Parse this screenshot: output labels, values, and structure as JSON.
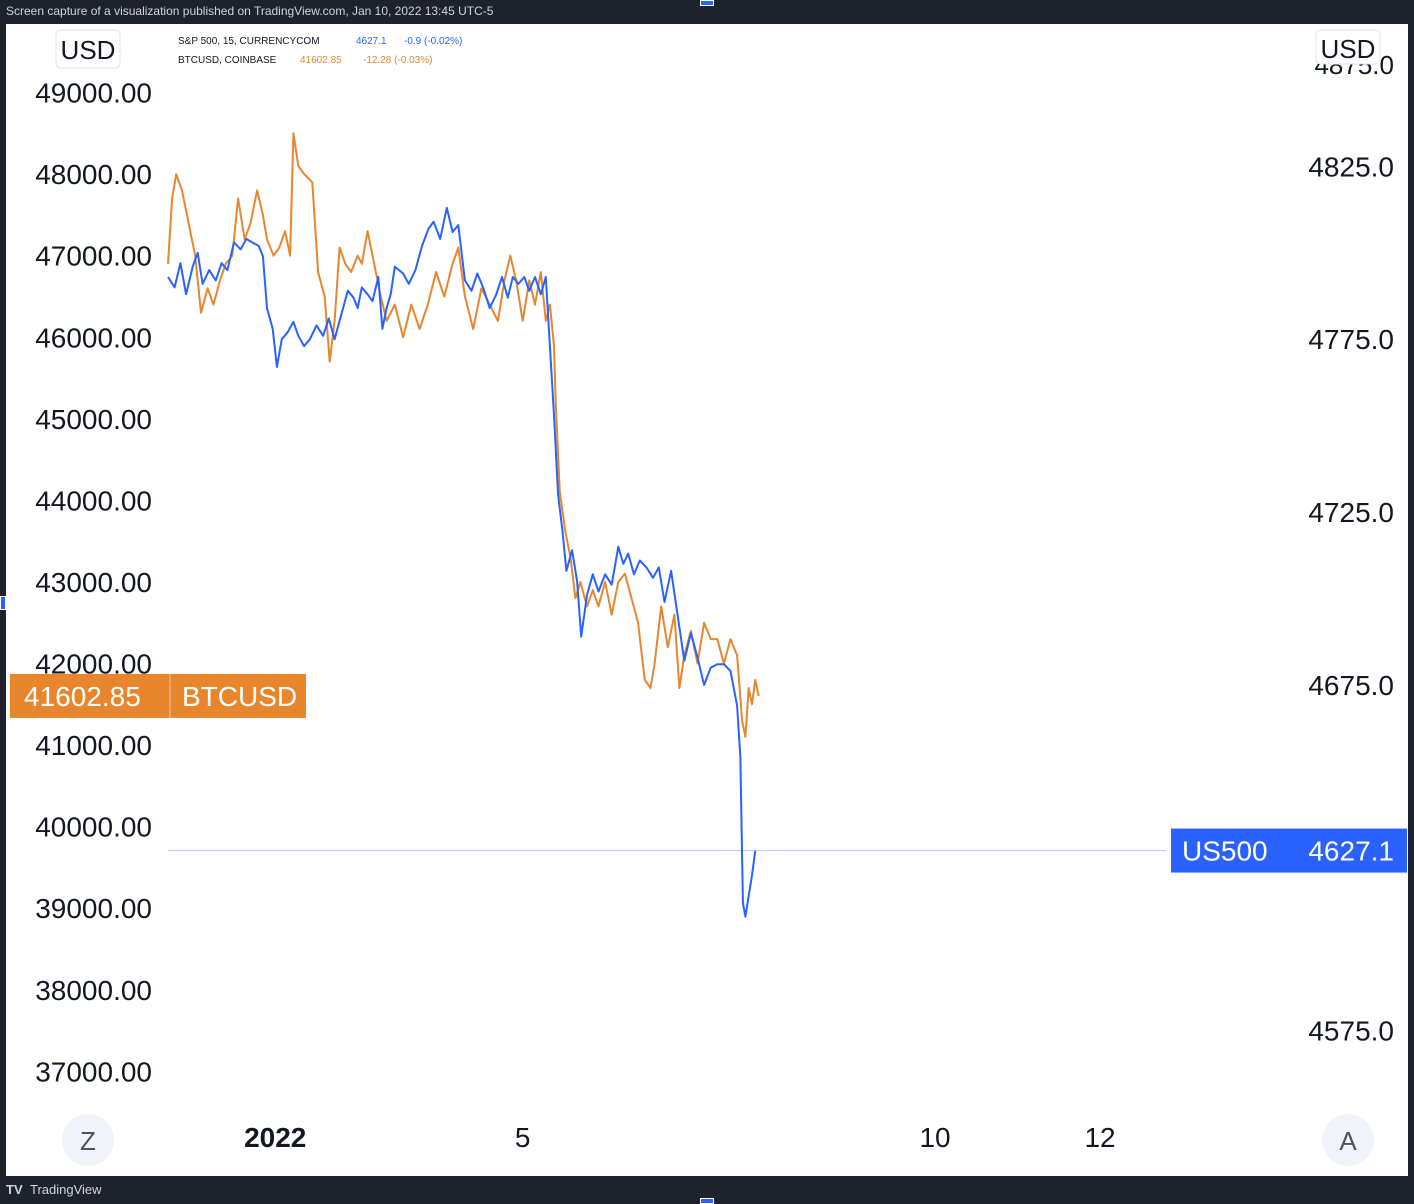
{
  "header": {
    "caption": "Screen capture of a visualization published on TradingView.com, Jan 10, 2022 13:45 UTC-5"
  },
  "footer": {
    "brand": "TradingView",
    "logo_glyph": "TV"
  },
  "legend": {
    "row1": {
      "name": "S&P 500, 15, CURRENCYCOM",
      "value": "4627.1",
      "change": "-0.9 (-0.02%)",
      "color": "#2962ff"
    },
    "row2": {
      "name": "BTCUSD, COINBASE",
      "value": "41602.85",
      "change": "-12.28 (-0.03%)",
      "color": "#e8862d"
    }
  },
  "left_axis": {
    "unit": "USD"
  },
  "right_axis": {
    "unit": "USD",
    "top_partial": "4875.0"
  },
  "price_labels": {
    "btc": {
      "value": "41602.85",
      "name": "BTCUSD",
      "color": "#e8862d"
    },
    "spx": {
      "value": "4627.1",
      "name": "US500",
      "color": "#2962ff"
    }
  },
  "buttons": {
    "zoom": "Z",
    "auto": "A"
  },
  "chart_data": {
    "type": "line",
    "x_ticks": [
      {
        "label": "2022",
        "t": 2.0
      },
      {
        "label": "5",
        "t": 5.0
      },
      {
        "label": "10",
        "t": 10.0
      },
      {
        "label": "12",
        "t": 12.0
      }
    ],
    "x_range_days": [
      0.7,
      12.8
    ],
    "left_axis": {
      "ticks": [
        "49000.00",
        "48000.00",
        "47000.00",
        "46000.00",
        "45000.00",
        "44000.00",
        "43000.00",
        "42000.00",
        "41000.00",
        "40000.00",
        "39000.00",
        "38000.00",
        "37000.00"
      ],
      "range": [
        36600,
        49350
      ]
    },
    "right_axis": {
      "ticks": [
        "4825.0",
        "4775.0",
        "4725.0",
        "4675.0",
        "4575.0"
      ],
      "range": [
        4553.8,
        4854.6
      ]
    },
    "grid": false,
    "series": [
      {
        "name": "BTCUSD",
        "axis": "left",
        "color": "#e8862d",
        "points": [
          [
            0.7,
            46900
          ],
          [
            0.75,
            47700
          ],
          [
            0.8,
            48000
          ],
          [
            0.87,
            47800
          ],
          [
            0.95,
            47400
          ],
          [
            1.03,
            47000
          ],
          [
            1.1,
            46300
          ],
          [
            1.18,
            46600
          ],
          [
            1.25,
            46400
          ],
          [
            1.33,
            46700
          ],
          [
            1.4,
            46900
          ],
          [
            1.48,
            47000
          ],
          [
            1.55,
            47700
          ],
          [
            1.63,
            47200
          ],
          [
            1.7,
            47400
          ],
          [
            1.78,
            47800
          ],
          [
            1.85,
            47500
          ],
          [
            1.9,
            47200
          ],
          [
            1.98,
            47000
          ],
          [
            2.05,
            47100
          ],
          [
            2.12,
            47300
          ],
          [
            2.18,
            47000
          ],
          [
            2.22,
            48500
          ],
          [
            2.28,
            48100
          ],
          [
            2.35,
            48000
          ],
          [
            2.45,
            47900
          ],
          [
            2.52,
            46800
          ],
          [
            2.6,
            46500
          ],
          [
            2.66,
            45700
          ],
          [
            2.72,
            46200
          ],
          [
            2.78,
            47100
          ],
          [
            2.85,
            46900
          ],
          [
            2.92,
            46800
          ],
          [
            3.0,
            47000
          ],
          [
            3.05,
            46900
          ],
          [
            3.12,
            47300
          ],
          [
            3.2,
            46900
          ],
          [
            3.28,
            46500
          ],
          [
            3.35,
            46200
          ],
          [
            3.45,
            46400
          ],
          [
            3.55,
            46000
          ],
          [
            3.65,
            46400
          ],
          [
            3.75,
            46100
          ],
          [
            3.85,
            46400
          ],
          [
            3.95,
            46800
          ],
          [
            4.05,
            46500
          ],
          [
            4.15,
            46900
          ],
          [
            4.22,
            47100
          ],
          [
            4.3,
            46500
          ],
          [
            4.4,
            46100
          ],
          [
            4.5,
            46600
          ],
          [
            4.6,
            46400
          ],
          [
            4.7,
            46200
          ],
          [
            4.78,
            46700
          ],
          [
            4.85,
            47000
          ],
          [
            4.92,
            46700
          ],
          [
            5.0,
            46200
          ],
          [
            5.08,
            46700
          ],
          [
            5.15,
            46400
          ],
          [
            5.22,
            46800
          ],
          [
            5.28,
            46200
          ],
          [
            5.33,
            46400
          ],
          [
            5.38,
            45900
          ],
          [
            5.4,
            45200
          ],
          [
            5.45,
            44100
          ],
          [
            5.52,
            43600
          ],
          [
            5.58,
            43300
          ],
          [
            5.64,
            42800
          ],
          [
            5.7,
            43000
          ],
          [
            5.78,
            42700
          ],
          [
            5.85,
            42900
          ],
          [
            5.92,
            42700
          ],
          [
            6.0,
            43000
          ],
          [
            6.08,
            42600
          ],
          [
            6.16,
            43000
          ],
          [
            6.24,
            43100
          ],
          [
            6.32,
            42800
          ],
          [
            6.4,
            42500
          ],
          [
            6.48,
            41800
          ],
          [
            6.55,
            41700
          ],
          [
            6.6,
            42000
          ],
          [
            6.68,
            42700
          ],
          [
            6.76,
            42200
          ],
          [
            6.84,
            42600
          ],
          [
            6.9,
            41700
          ],
          [
            6.96,
            42100
          ],
          [
            7.04,
            42400
          ],
          [
            7.12,
            42000
          ],
          [
            7.2,
            42500
          ],
          [
            7.28,
            42300
          ],
          [
            7.36,
            42300
          ],
          [
            7.44,
            42000
          ],
          [
            7.52,
            42300
          ],
          [
            7.6,
            42100
          ],
          [
            7.66,
            41300
          ],
          [
            7.7,
            41100
          ],
          [
            7.74,
            41700
          ],
          [
            7.78,
            41500
          ],
          [
            7.82,
            41800
          ],
          [
            7.86,
            41602.85
          ]
        ]
      },
      {
        "name": "US500",
        "axis": "right",
        "color": "#2962ff",
        "points": [
          [
            0.7,
            4793
          ],
          [
            0.78,
            4790
          ],
          [
            0.85,
            4797
          ],
          [
            0.92,
            4788
          ],
          [
            1.0,
            4796
          ],
          [
            1.06,
            4800
          ],
          [
            1.12,
            4791
          ],
          [
            1.2,
            4795
          ],
          [
            1.28,
            4792
          ],
          [
            1.35,
            4797
          ],
          [
            1.42,
            4795
          ],
          [
            1.5,
            4803
          ],
          [
            1.58,
            4801
          ],
          [
            1.65,
            4804
          ],
          [
            1.72,
            4803
          ],
          [
            1.8,
            4802
          ],
          [
            1.85,
            4799
          ],
          [
            1.9,
            4784
          ],
          [
            1.97,
            4778
          ],
          [
            2.02,
            4767
          ],
          [
            2.08,
            4775
          ],
          [
            2.15,
            4777
          ],
          [
            2.22,
            4780
          ],
          [
            2.28,
            4776
          ],
          [
            2.35,
            4773
          ],
          [
            2.42,
            4775
          ],
          [
            2.5,
            4779
          ],
          [
            2.58,
            4776
          ],
          [
            2.65,
            4781
          ],
          [
            2.72,
            4775
          ],
          [
            2.8,
            4782
          ],
          [
            2.88,
            4789
          ],
          [
            2.95,
            4787
          ],
          [
            3.0,
            4784
          ],
          [
            3.05,
            4790
          ],
          [
            3.12,
            4788
          ],
          [
            3.18,
            4786
          ],
          [
            3.25,
            4793
          ],
          [
            3.3,
            4778
          ],
          [
            3.35,
            4784
          ],
          [
            3.4,
            4788
          ],
          [
            3.45,
            4796
          ],
          [
            3.55,
            4794
          ],
          [
            3.62,
            4791
          ],
          [
            3.7,
            4795
          ],
          [
            3.78,
            4802
          ],
          [
            3.86,
            4807
          ],
          [
            3.92,
            4809
          ],
          [
            4.0,
            4804
          ],
          [
            4.08,
            4813
          ],
          [
            4.15,
            4806
          ],
          [
            4.22,
            4808
          ],
          [
            4.3,
            4792
          ],
          [
            4.38,
            4789
          ],
          [
            4.45,
            4794
          ],
          [
            4.52,
            4790
          ],
          [
            4.6,
            4784
          ],
          [
            4.68,
            4788
          ],
          [
            4.75,
            4793
          ],
          [
            4.82,
            4787
          ],
          [
            4.88,
            4793
          ],
          [
            4.95,
            4791
          ],
          [
            5.02,
            4793
          ],
          [
            5.08,
            4789
          ],
          [
            5.15,
            4793
          ],
          [
            5.22,
            4788
          ],
          [
            5.28,
            4793
          ],
          [
            5.33,
            4773
          ],
          [
            5.38,
            4753
          ],
          [
            5.43,
            4730
          ],
          [
            5.48,
            4720
          ],
          [
            5.53,
            4708
          ],
          [
            5.6,
            4714
          ],
          [
            5.66,
            4705
          ],
          [
            5.71,
            4689
          ],
          [
            5.78,
            4701
          ],
          [
            5.85,
            4707
          ],
          [
            5.92,
            4702
          ],
          [
            6.0,
            4707
          ],
          [
            6.08,
            4704
          ],
          [
            6.16,
            4715
          ],
          [
            6.22,
            4710
          ],
          [
            6.28,
            4713
          ],
          [
            6.35,
            4707
          ],
          [
            6.42,
            4711
          ],
          [
            6.5,
            4709
          ],
          [
            6.58,
            4706
          ],
          [
            6.65,
            4709
          ],
          [
            6.72,
            4699
          ],
          [
            6.8,
            4708
          ],
          [
            6.88,
            4695
          ],
          [
            6.96,
            4682
          ],
          [
            7.04,
            4690
          ],
          [
            7.12,
            4683
          ],
          [
            7.2,
            4675
          ],
          [
            7.28,
            4680
          ],
          [
            7.36,
            4681
          ],
          [
            7.44,
            4681
          ],
          [
            7.52,
            4679
          ],
          [
            7.6,
            4669
          ],
          [
            7.64,
            4654
          ],
          [
            7.67,
            4612
          ],
          [
            7.7,
            4608
          ],
          [
            7.74,
            4614
          ],
          [
            7.78,
            4620
          ],
          [
            7.82,
            4627.1
          ]
        ]
      }
    ]
  }
}
